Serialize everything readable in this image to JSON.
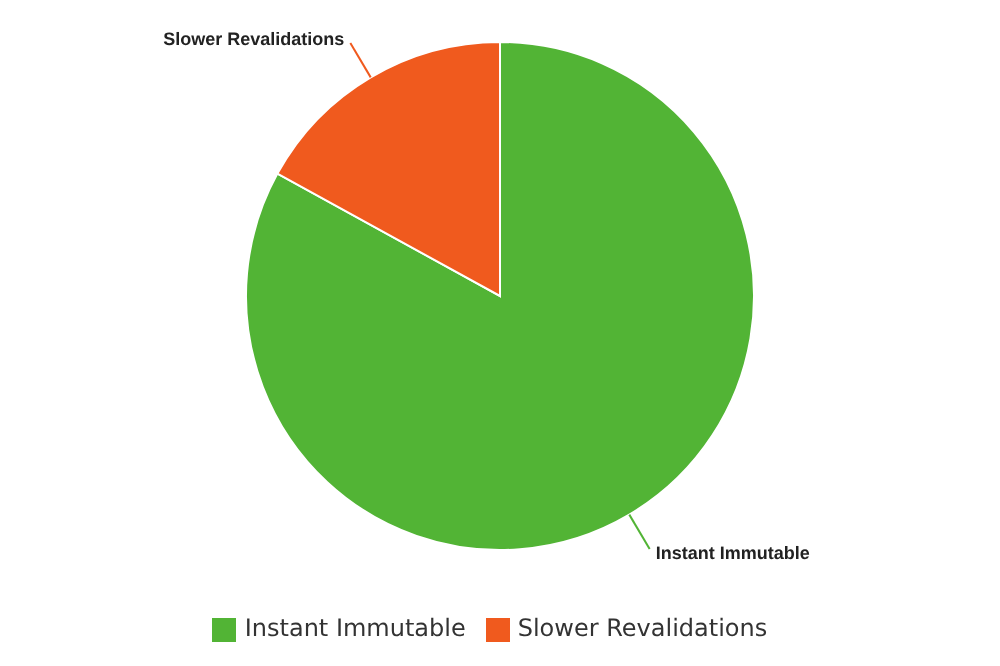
{
  "chart_data": {
    "type": "pie",
    "categories": [
      "Instant Immutable",
      "Slower Revalidations"
    ],
    "values": [
      83,
      17
    ],
    "colors": [
      "#52b435",
      "#f05a1e"
    ],
    "legend": "bottom"
  }
}
